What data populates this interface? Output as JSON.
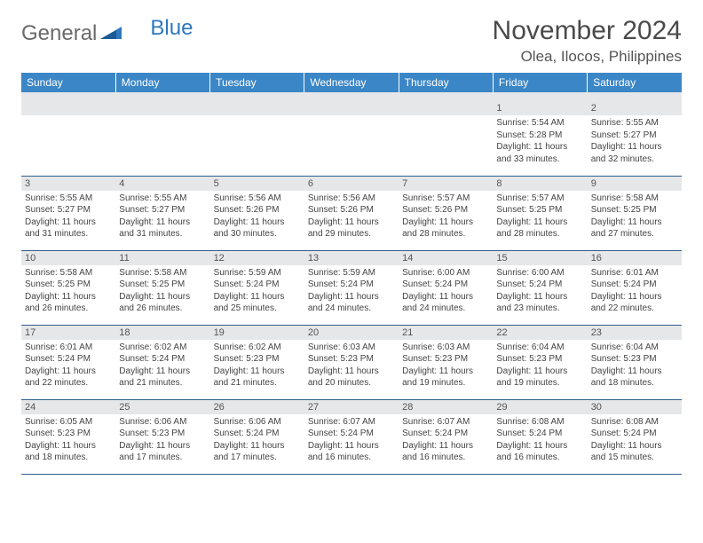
{
  "brand": {
    "part1": "General",
    "part2": "Blue"
  },
  "title": "November 2024",
  "location": "Olea, Ilocos, Philippines",
  "colors": {
    "header_bg": "#3b86c6",
    "header_text": "#ffffff",
    "daynum_bg": "#e6e7e9",
    "border": "#2f5f8c",
    "body_text": "#444444",
    "brand_gray": "#6a6a6a",
    "brand_blue": "#2f78bd"
  },
  "weekdays": [
    "Sunday",
    "Monday",
    "Tuesday",
    "Wednesday",
    "Thursday",
    "Friday",
    "Saturday"
  ],
  "weeks": [
    [
      null,
      null,
      null,
      null,
      null,
      {
        "n": "1",
        "sr": "5:54 AM",
        "ss": "5:28 PM",
        "dl": "11 hours and 33 minutes."
      },
      {
        "n": "2",
        "sr": "5:55 AM",
        "ss": "5:27 PM",
        "dl": "11 hours and 32 minutes."
      }
    ],
    [
      {
        "n": "3",
        "sr": "5:55 AM",
        "ss": "5:27 PM",
        "dl": "11 hours and 31 minutes."
      },
      {
        "n": "4",
        "sr": "5:55 AM",
        "ss": "5:27 PM",
        "dl": "11 hours and 31 minutes."
      },
      {
        "n": "5",
        "sr": "5:56 AM",
        "ss": "5:26 PM",
        "dl": "11 hours and 30 minutes."
      },
      {
        "n": "6",
        "sr": "5:56 AM",
        "ss": "5:26 PM",
        "dl": "11 hours and 29 minutes."
      },
      {
        "n": "7",
        "sr": "5:57 AM",
        "ss": "5:26 PM",
        "dl": "11 hours and 28 minutes."
      },
      {
        "n": "8",
        "sr": "5:57 AM",
        "ss": "5:25 PM",
        "dl": "11 hours and 28 minutes."
      },
      {
        "n": "9",
        "sr": "5:58 AM",
        "ss": "5:25 PM",
        "dl": "11 hours and 27 minutes."
      }
    ],
    [
      {
        "n": "10",
        "sr": "5:58 AM",
        "ss": "5:25 PM",
        "dl": "11 hours and 26 minutes."
      },
      {
        "n": "11",
        "sr": "5:58 AM",
        "ss": "5:25 PM",
        "dl": "11 hours and 26 minutes."
      },
      {
        "n": "12",
        "sr": "5:59 AM",
        "ss": "5:24 PM",
        "dl": "11 hours and 25 minutes."
      },
      {
        "n": "13",
        "sr": "5:59 AM",
        "ss": "5:24 PM",
        "dl": "11 hours and 24 minutes."
      },
      {
        "n": "14",
        "sr": "6:00 AM",
        "ss": "5:24 PM",
        "dl": "11 hours and 24 minutes."
      },
      {
        "n": "15",
        "sr": "6:00 AM",
        "ss": "5:24 PM",
        "dl": "11 hours and 23 minutes."
      },
      {
        "n": "16",
        "sr": "6:01 AM",
        "ss": "5:24 PM",
        "dl": "11 hours and 22 minutes."
      }
    ],
    [
      {
        "n": "17",
        "sr": "6:01 AM",
        "ss": "5:24 PM",
        "dl": "11 hours and 22 minutes."
      },
      {
        "n": "18",
        "sr": "6:02 AM",
        "ss": "5:24 PM",
        "dl": "11 hours and 21 minutes."
      },
      {
        "n": "19",
        "sr": "6:02 AM",
        "ss": "5:23 PM",
        "dl": "11 hours and 21 minutes."
      },
      {
        "n": "20",
        "sr": "6:03 AM",
        "ss": "5:23 PM",
        "dl": "11 hours and 20 minutes."
      },
      {
        "n": "21",
        "sr": "6:03 AM",
        "ss": "5:23 PM",
        "dl": "11 hours and 19 minutes."
      },
      {
        "n": "22",
        "sr": "6:04 AM",
        "ss": "5:23 PM",
        "dl": "11 hours and 19 minutes."
      },
      {
        "n": "23",
        "sr": "6:04 AM",
        "ss": "5:23 PM",
        "dl": "11 hours and 18 minutes."
      }
    ],
    [
      {
        "n": "24",
        "sr": "6:05 AM",
        "ss": "5:23 PM",
        "dl": "11 hours and 18 minutes."
      },
      {
        "n": "25",
        "sr": "6:06 AM",
        "ss": "5:23 PM",
        "dl": "11 hours and 17 minutes."
      },
      {
        "n": "26",
        "sr": "6:06 AM",
        "ss": "5:24 PM",
        "dl": "11 hours and 17 minutes."
      },
      {
        "n": "27",
        "sr": "6:07 AM",
        "ss": "5:24 PM",
        "dl": "11 hours and 16 minutes."
      },
      {
        "n": "28",
        "sr": "6:07 AM",
        "ss": "5:24 PM",
        "dl": "11 hours and 16 minutes."
      },
      {
        "n": "29",
        "sr": "6:08 AM",
        "ss": "5:24 PM",
        "dl": "11 hours and 16 minutes."
      },
      {
        "n": "30",
        "sr": "6:08 AM",
        "ss": "5:24 PM",
        "dl": "11 hours and 15 minutes."
      }
    ]
  ],
  "labels": {
    "sunrise": "Sunrise: ",
    "sunset": "Sunset: ",
    "daylight": "Daylight: "
  }
}
